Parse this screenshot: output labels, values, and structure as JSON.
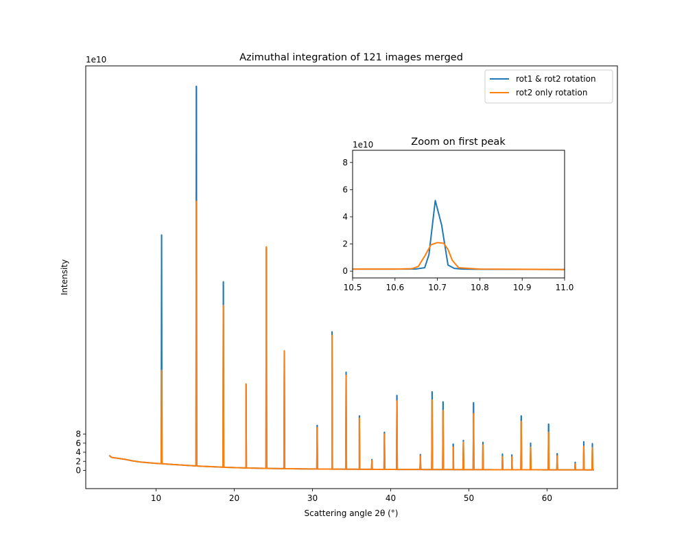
{
  "colors": {
    "series_1": "#1f77b4",
    "series_2": "#ff7f0e",
    "axes": "#000000",
    "background": "#ffffff"
  },
  "chart_data": [
    {
      "type": "line",
      "title": "Azimuthal integration of 121 images merged",
      "xlabel": "Scattering angle 2θ (°)",
      "ylabel": "Intensity",
      "y_scale_label": "1e10",
      "xlim": [
        1.0,
        69.0
      ],
      "ylim": [
        -4.0,
        89.0
      ],
      "xticks": [
        10,
        20,
        30,
        40,
        50,
        60
      ],
      "yticks": [
        0,
        2,
        4,
        6,
        8
      ],
      "grid": false,
      "legend_placement": "upper-right",
      "background_curve": {
        "x": [
          4.0,
          4.3,
          5.0,
          6.0,
          7.0,
          8.0,
          9.0,
          10.0,
          11.0,
          12.0,
          14.0,
          16.0,
          18.0,
          20.0,
          22.0,
          25.0,
          30.0,
          35.0,
          40.0,
          50.0,
          60.0,
          66.0
        ],
        "y": [
          3.3,
          2.85,
          2.7,
          2.45,
          2.1,
          1.85,
          1.7,
          1.55,
          1.45,
          1.32,
          1.1,
          0.9,
          0.75,
          0.62,
          0.52,
          0.42,
          0.32,
          0.26,
          0.22,
          0.17,
          0.14,
          0.12
        ]
      },
      "series": [
        {
          "name": "rot1 & rot2 rotation",
          "peaks": [
            {
              "x": 10.7,
              "y": 51.8
            },
            {
              "x": 15.15,
              "y": 84.5
            },
            {
              "x": 18.6,
              "y": 41.5
            },
            {
              "x": 21.5,
              "y": 19.0
            },
            {
              "x": 24.1,
              "y": 49.0
            },
            {
              "x": 26.4,
              "y": 26.3
            },
            {
              "x": 30.6,
              "y": 9.9
            },
            {
              "x": 32.5,
              "y": 30.5
            },
            {
              "x": 34.3,
              "y": 21.6
            },
            {
              "x": 36.0,
              "y": 12.0
            },
            {
              "x": 37.6,
              "y": 2.4
            },
            {
              "x": 39.2,
              "y": 8.4
            },
            {
              "x": 40.8,
              "y": 16.5
            },
            {
              "x": 43.8,
              "y": 3.5
            },
            {
              "x": 45.3,
              "y": 17.3
            },
            {
              "x": 46.7,
              "y": 15.1
            },
            {
              "x": 48.0,
              "y": 5.8
            },
            {
              "x": 49.3,
              "y": 6.6
            },
            {
              "x": 50.6,
              "y": 14.9
            },
            {
              "x": 51.8,
              "y": 6.2
            },
            {
              "x": 54.3,
              "y": 3.6
            },
            {
              "x": 55.5,
              "y": 3.4
            },
            {
              "x": 56.7,
              "y": 12.0
            },
            {
              "x": 57.9,
              "y": 6.0
            },
            {
              "x": 60.2,
              "y": 10.2
            },
            {
              "x": 61.3,
              "y": 3.7
            },
            {
              "x": 63.6,
              "y": 1.8
            },
            {
              "x": 64.7,
              "y": 6.3
            },
            {
              "x": 65.8,
              "y": 5.9
            }
          ]
        },
        {
          "name": "rot2 only rotation",
          "peaks": [
            {
              "x": 10.7,
              "y": 22.0
            },
            {
              "x": 15.15,
              "y": 59.2
            },
            {
              "x": 18.6,
              "y": 36.3
            },
            {
              "x": 21.5,
              "y": 19.0
            },
            {
              "x": 24.1,
              "y": 49.2
            },
            {
              "x": 26.4,
              "y": 26.3
            },
            {
              "x": 30.6,
              "y": 9.4
            },
            {
              "x": 32.5,
              "y": 29.7
            },
            {
              "x": 34.3,
              "y": 20.9
            },
            {
              "x": 36.0,
              "y": 11.5
            },
            {
              "x": 37.6,
              "y": 2.2
            },
            {
              "x": 39.2,
              "y": 8.0
            },
            {
              "x": 40.8,
              "y": 15.3
            },
            {
              "x": 43.8,
              "y": 3.2
            },
            {
              "x": 45.3,
              "y": 15.5
            },
            {
              "x": 46.7,
              "y": 13.2
            },
            {
              "x": 48.0,
              "y": 5.1
            },
            {
              "x": 49.3,
              "y": 6.2
            },
            {
              "x": 50.6,
              "y": 12.5
            },
            {
              "x": 51.8,
              "y": 5.6
            },
            {
              "x": 54.3,
              "y": 3.0
            },
            {
              "x": 55.5,
              "y": 3.0
            },
            {
              "x": 56.7,
              "y": 10.8
            },
            {
              "x": 57.9,
              "y": 5.1
            },
            {
              "x": 60.2,
              "y": 8.4
            },
            {
              "x": 61.3,
              "y": 3.2
            },
            {
              "x": 63.6,
              "y": 1.4
            },
            {
              "x": 64.7,
              "y": 5.3
            },
            {
              "x": 65.8,
              "y": 5.0
            }
          ]
        }
      ]
    },
    {
      "type": "line",
      "title": "Zoom on first peak",
      "y_scale_label": "1e10",
      "xlim": [
        10.5,
        11.0
      ],
      "ylim": [
        -0.5,
        8.9
      ],
      "xticks": [
        10.5,
        10.6,
        10.7,
        10.8,
        10.9,
        11.0
      ],
      "xtick_labels": [
        "10.5",
        "10.6",
        "10.7",
        "10.8",
        "10.9",
        "11.0"
      ],
      "yticks": [
        0,
        2,
        4,
        6,
        8
      ],
      "grid": false,
      "series": [
        {
          "name": "rot1 & rot2 rotation",
          "x": [
            10.5,
            10.6,
            10.65,
            10.67,
            10.68,
            10.695,
            10.71,
            10.725,
            10.74,
            10.76,
            10.8,
            10.9,
            11.0
          ],
          "y": [
            0.15,
            0.15,
            0.16,
            0.25,
            1.2,
            5.2,
            3.4,
            0.45,
            0.2,
            0.15,
            0.14,
            0.13,
            0.12
          ]
        },
        {
          "name": "rot2 only rotation",
          "x": [
            10.5,
            10.6,
            10.64,
            10.655,
            10.67,
            10.685,
            10.7,
            10.715,
            10.725,
            10.735,
            10.75,
            10.8,
            10.9,
            11.0
          ],
          "y": [
            0.15,
            0.15,
            0.18,
            0.35,
            1.1,
            1.95,
            2.1,
            2.05,
            1.6,
            0.8,
            0.25,
            0.15,
            0.14,
            0.12
          ]
        }
      ]
    }
  ]
}
